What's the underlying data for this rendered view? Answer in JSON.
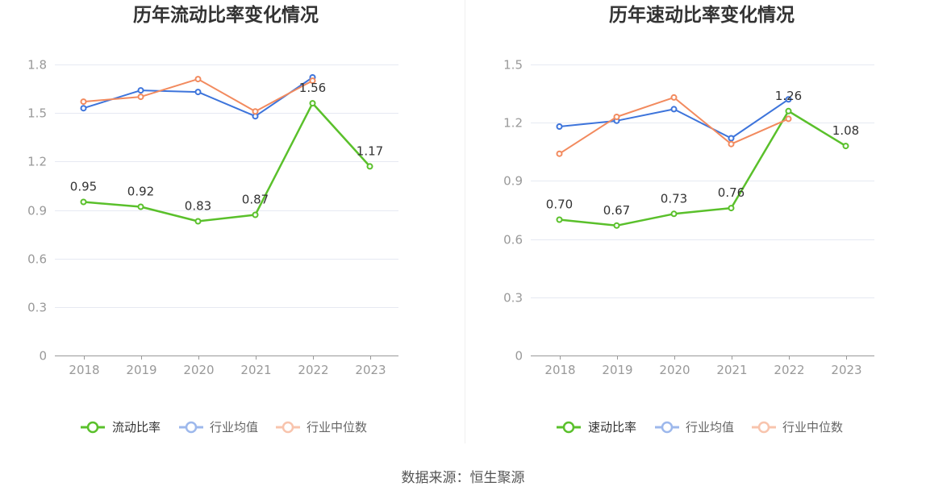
{
  "chart_data": [
    {
      "type": "line",
      "title": "历年流动比率变化情况",
      "categories": [
        "2018",
        "2019",
        "2020",
        "2021",
        "2022",
        "2023"
      ],
      "ylim": [
        0,
        1.8
      ],
      "yticks": [
        0,
        0.3,
        0.6,
        0.9,
        1.2,
        1.5,
        1.8
      ],
      "grid": true,
      "legend_position": "bottom",
      "series": [
        {
          "name": "流动比率",
          "color": "#5ac02b",
          "show_labels": true,
          "values": [
            0.95,
            0.92,
            0.83,
            0.87,
            1.56,
            1.17
          ]
        },
        {
          "name": "行业均值",
          "color": "#3d74db",
          "show_labels": false,
          "values": [
            1.53,
            1.64,
            1.63,
            1.48,
            1.72,
            null
          ]
        },
        {
          "name": "行业中位数",
          "color": "#f28a5e",
          "show_labels": false,
          "values": [
            1.57,
            1.6,
            1.71,
            1.51,
            1.7,
            null
          ]
        }
      ]
    },
    {
      "type": "line",
      "title": "历年速动比率变化情况",
      "categories": [
        "2018",
        "2019",
        "2020",
        "2021",
        "2022",
        "2023"
      ],
      "ylim": [
        0,
        1.5
      ],
      "yticks": [
        0,
        0.3,
        0.6,
        0.9,
        1.2,
        1.5
      ],
      "grid": true,
      "legend_position": "bottom",
      "series": [
        {
          "name": "速动比率",
          "color": "#5ac02b",
          "show_labels": true,
          "values": [
            0.7,
            0.67,
            0.73,
            0.76,
            1.26,
            1.08
          ]
        },
        {
          "name": "行业均值",
          "color": "#3d74db",
          "show_labels": false,
          "values": [
            1.18,
            1.21,
            1.27,
            1.12,
            1.32,
            null
          ]
        },
        {
          "name": "行业中位数",
          "color": "#f28a5e",
          "show_labels": false,
          "values": [
            1.04,
            1.23,
            1.33,
            1.09,
            1.22,
            null
          ]
        }
      ]
    }
  ],
  "footer": "数据来源：恒生聚源"
}
